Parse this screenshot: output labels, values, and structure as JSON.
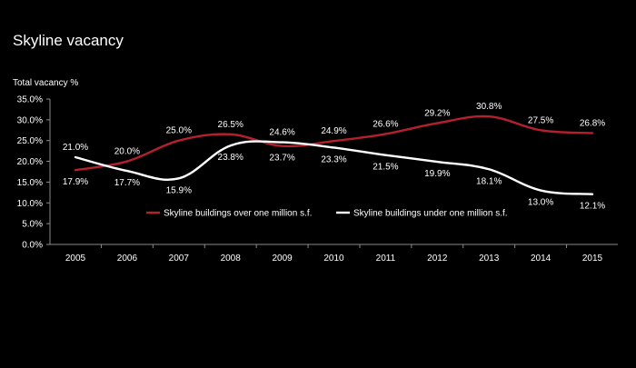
{
  "chart_data": {
    "type": "line",
    "title": "Skyline vacancy",
    "ylabel": "Total vacancy %",
    "xlabel": "",
    "categories": [
      "2005",
      "2006",
      "2007",
      "2008",
      "2009",
      "2010",
      "2011",
      "2012",
      "2013",
      "2014",
      "2015"
    ],
    "ylim": [
      0,
      35
    ],
    "yticks": [
      "0.0%",
      "5.0%",
      "10.0%",
      "15.0%",
      "20.0%",
      "25.0%",
      "30.0%",
      "35.0%"
    ],
    "ytick_values": [
      0,
      5,
      10,
      15,
      20,
      25,
      30,
      35
    ],
    "grid": false,
    "legend_position": "middle-center",
    "series": [
      {
        "name": "Skyline buildings over one million s.f.",
        "color": "#b5202e",
        "values": [
          17.9,
          20.0,
          25.0,
          26.5,
          23.7,
          24.9,
          26.6,
          29.2,
          30.8,
          27.5,
          26.8
        ],
        "labels": [
          "17.9%",
          "20.0%",
          "25.0%",
          "26.5%",
          "23.7%",
          "24.9%",
          "26.6%",
          "29.2%",
          "30.8%",
          "27.5%",
          "26.8%"
        ]
      },
      {
        "name": "Skyline buildings under one million s.f.",
        "color": "#ffffff",
        "values": [
          21.0,
          17.7,
          15.9,
          23.8,
          24.6,
          23.3,
          21.5,
          19.9,
          18.1,
          13.0,
          12.1
        ],
        "labels": [
          "21.0%",
          "17.7%",
          "15.9%",
          "23.8%",
          "24.6%",
          "23.3%",
          "21.5%",
          "19.9%",
          "18.1%",
          "13.0%",
          "12.1%"
        ]
      }
    ]
  }
}
